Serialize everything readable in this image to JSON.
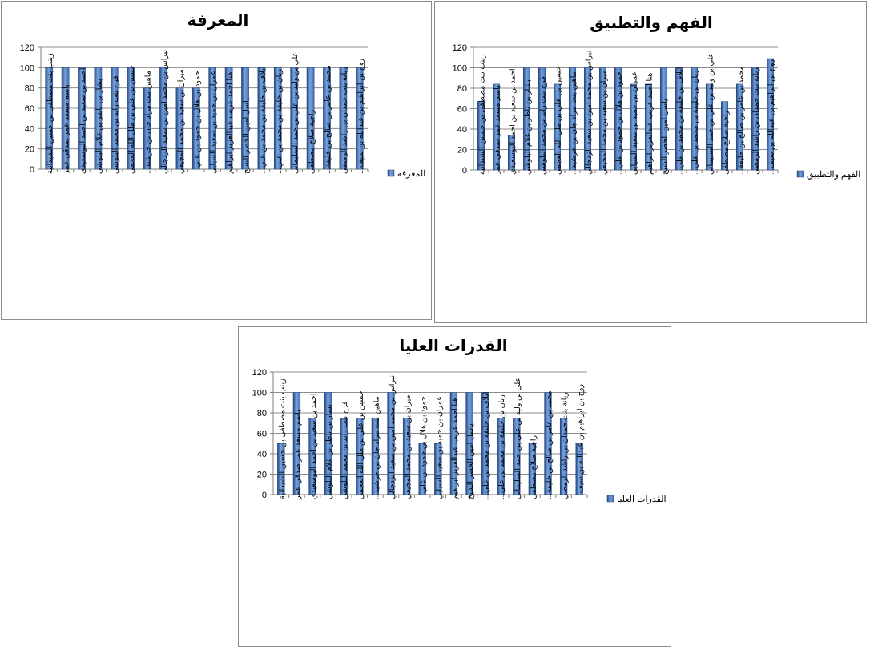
{
  "colors": {
    "bar": "#3d6fb6",
    "bar_light": "#7aa3dc",
    "bar_dark": "#22467f",
    "grid": "#8c8c8c",
    "axis": "#7f7f7f"
  },
  "chart_data": [
    {
      "type": "bar",
      "title": "المعرفة",
      "legend": "المعرفة",
      "legend_position": "right",
      "ylim": [
        0,
        120
      ],
      "yticks": [
        0,
        20,
        40,
        60,
        80,
        100,
        120
      ],
      "grid": true,
      "categories": [
        "زينب بنت مصطفى بن حسين الشيذانية",
        "باسم مسعد عمر صدقي عمر",
        "احمد بن سعيد بن احمد البوسعيدي",
        "بشار بن ناظر بن غلام البلوشي",
        "فرح بنت زايد بن محمد البلوشي",
        "حسين بن علي بن ملل الله العجمي",
        "ماهين بنت مراد جان بن خرشيد...",
        "نبراس بن محمد امين بن سعيد الزدجالي",
        "ميران بن سعيد بن محمد المجيفي",
        "حمود بن هلال بن حمود بن علي...",
        "عمران بن حميد بن سعيد السيابي",
        "هنا احمد عريب عبدالعزيز ابراهيم",
        "ياسل امين الخضر الشيخ",
        "ايلاف بن خليفة بن محمد بن علي...",
        "ريان بن خليفة بن محمد بن علي...",
        "علي بن وليد بن علي بن حمد السليماني",
        "راجية صلاح مصطفى",
        "محمد بن عامر بن صالح بن خليفة...",
        "ريانة بنت حمدان بن راشد الرمضي",
        "روح بن ابراهيم بن عبدالله بن سيف..."
      ],
      "values": [
        100,
        100,
        100,
        100,
        100,
        100,
        80,
        100,
        80,
        80,
        100,
        100,
        100,
        100,
        100,
        100,
        100,
        100,
        100,
        100
      ]
    },
    {
      "type": "bar",
      "title": "الفهم والتطبيق",
      "legend": "الفهم والتطبيق",
      "legend_position": "right",
      "ylim": [
        0,
        120
      ],
      "yticks": [
        0,
        20,
        40,
        60,
        80,
        100,
        120
      ],
      "grid": true,
      "categories": [
        "زينب بنت مصطفى بن حسين الشيذانية",
        "باسم مسعد عمر صدقي عمر",
        "احمد بن سعيد بن احمد البوسعيدي",
        "بشار بن ناظر بن غلام البلوشي",
        "فرح بنت زايد بن محمد البلوشي",
        "حسين بن علي بن ملل الله العجمي",
        "ماهين بنت مراد جان بن خرشيد...",
        "نبراس بن محمد امين بن سعيد الزدجالي",
        "ميران بن سعيد بن محمد المجيفي",
        "حمود بن هلال بن حمود بن علي...",
        "عمران بن حميد بن سعيد السيابي",
        "هنا احمد عريب عبدالعزيز ابراهيم",
        "ياسل امين الخضر الشيخ",
        "ايلاف بن خليفة بن محمد بن علي...",
        "ريان بن خليفة بن محمد بن علي...",
        "علي بن وليد بن علي بن حمد السليماني",
        "راجية صلاح مصطفى",
        "محمد بن عامر بن صالح بن خليفة...",
        "ريانة بنت حمدان بن راشد الرمضي",
        "روح بن ابراهيم بن عبدالله بن سيف..."
      ],
      "values": [
        67,
        84,
        34,
        100,
        100,
        84,
        100,
        100,
        100,
        100,
        84,
        84,
        100,
        100,
        100,
        84,
        67,
        84,
        100,
        109
      ]
    },
    {
      "type": "bar",
      "title": "القدرات العليا",
      "legend": "القدرات العليا",
      "legend_position": "right",
      "ylim": [
        0,
        120
      ],
      "yticks": [
        0,
        20,
        40,
        60,
        80,
        100,
        120
      ],
      "grid": true,
      "categories": [
        "زينب بنت مصطفى بن حسين الشيذانية",
        "باسم مسعد عمر صدقي عمر",
        "احمد بن سعيد بن احمد البوسعيدي",
        "بشار بن ناظر بن غلام البلوشي",
        "فرح بنت زايد بن محمد البلوشي",
        "حسين بن علي بن ملل الله العجمي",
        "ماهين بنت مراد جان بن خرشيد...",
        "نبراس بن محمد امين بن سعيد الزدجالي",
        "ميران بن سعيد بن محمد المجيفي",
        "حمود بن هلال بن حمود بن علي...",
        "عمران بن حميد بن سعيد السيابي",
        "هنا احمد عريب عبدالعزيز ابراهيم",
        "ياسل امين الخضر الشيخ",
        "ايلاف بن خليفة بن محمد بن علي...",
        "ريان بن خليفة بن محمد بن علي...",
        "علي بن وليد بن علي بن حمد السليماني",
        "راجية صلاح مصطفى",
        "محمد بن عامر بن صالح بن خليفة...",
        "ريانة بنت حمدان بن راشد الرمضي",
        "روح بن ابراهيم بن عبدالله بن سيف..."
      ],
      "values": [
        50,
        100,
        75,
        100,
        75,
        75,
        75,
        100,
        75,
        50,
        50,
        100,
        100,
        100,
        75,
        75,
        50,
        100,
        75,
        50
      ]
    }
  ]
}
